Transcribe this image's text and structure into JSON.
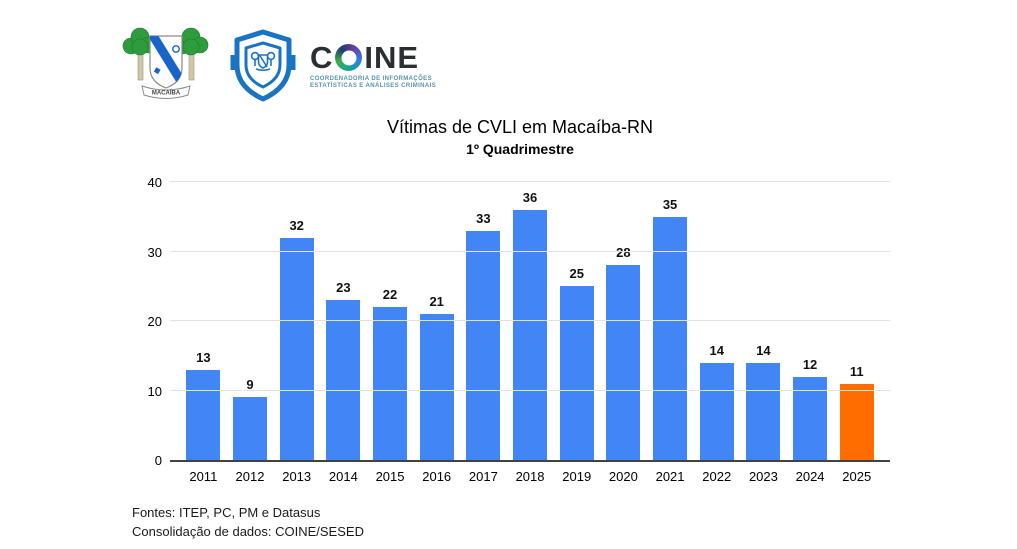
{
  "header": {
    "macaiba_crest": {
      "banner_text": "MACAÍBA"
    },
    "coine_wordmark": {
      "letters_before_o": "C",
      "letters_after_o": "INE",
      "full_name": "COINE",
      "subtitle_line1": "COORDENADORIA DE INFORMAÇÕES",
      "subtitle_line2": "ESTATÍSTICAS E ANÁLISES CRIMINAIS"
    }
  },
  "chart_data": {
    "type": "bar",
    "title": "Vítimas de CVLI em Macaíba-RN",
    "subtitle": "1º Quadrimestre",
    "categories": [
      "2011",
      "2012",
      "2013",
      "2014",
      "2015",
      "2016",
      "2017",
      "2018",
      "2019",
      "2020",
      "2021",
      "2022",
      "2023",
      "2024",
      "2025"
    ],
    "values": [
      13,
      9,
      32,
      23,
      22,
      21,
      33,
      36,
      25,
      28,
      35,
      14,
      14,
      12,
      11
    ],
    "ylim": [
      0,
      40
    ],
    "yticks": [
      0,
      10,
      20,
      30,
      40
    ],
    "grid": true,
    "legend": "none",
    "bar_color": "#4285F4",
    "highlight_color": "#FF6D01",
    "highlight_index": 14
  },
  "footer": {
    "line1": "Fontes: ITEP, PC, PM e Datasus",
    "line2": "Consolidação de dados: COINE/SESED"
  }
}
